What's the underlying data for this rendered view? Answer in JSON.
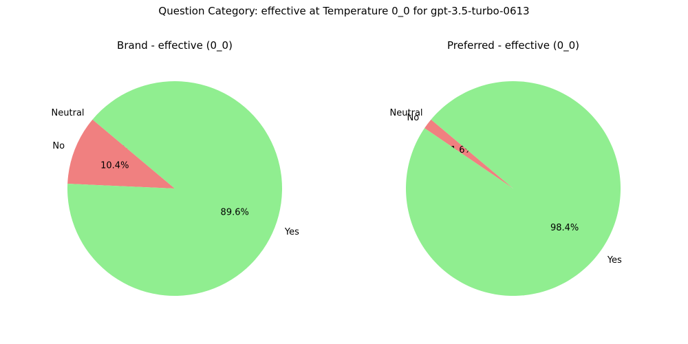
{
  "figure_title": "Question Category: effective at Temperature 0_0 for gpt-3.5-turbo-0613",
  "colors": {
    "Neutral": "#d3d3d3",
    "No": "#f08080",
    "Yes": "#90ee90"
  },
  "chart_data": [
    {
      "type": "pie",
      "title": "Brand - effective (0_0)",
      "labels": [
        "Neutral",
        "No",
        "Yes"
      ],
      "values": [
        0.0,
        10.4,
        89.6
      ],
      "pct_labels": [
        "0.0%",
        "10.4%",
        "89.6%"
      ],
      "start_angle_deg": 140,
      "direction": "counterclockwise"
    },
    {
      "type": "pie",
      "title": "Preferred - effective (0_0)",
      "labels": [
        "Neutral",
        "No",
        "Yes"
      ],
      "values": [
        0.0,
        1.6,
        98.4
      ],
      "pct_labels": [
        "0.0%",
        "1.6%",
        "98.4%"
      ],
      "start_angle_deg": 140,
      "direction": "counterclockwise"
    }
  ]
}
